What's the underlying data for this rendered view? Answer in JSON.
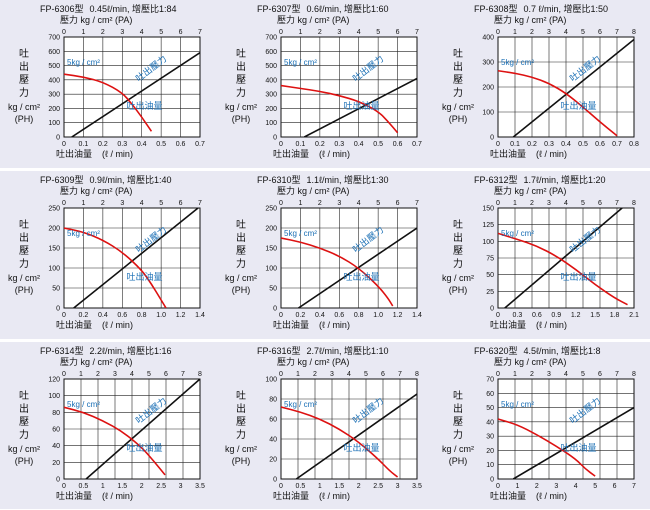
{
  "common": {
    "pressure_label": "壓力",
    "pressure_unit": "kg / cm² (PA)",
    "flow_label": "吐出油量",
    "flow_unit": "(ℓ / min)",
    "y_chars": [
      "吐",
      "出",
      "壓",
      "力"
    ],
    "y_unit": "kg / cm²",
    "y_ph": "(PH)",
    "pressure_curve_label": "吐出壓力",
    "flow_curve_label": "吐出油量",
    "colors": {
      "pressure_line": "#111111",
      "flow_curve": "#dd1111",
      "annotation": "#1a6fb5",
      "band": "#e9e9f3"
    }
  },
  "chart_data": [
    {
      "type": "line",
      "model": "FP-6306型",
      "spec": "0.45ℓ/min, 增壓比1:84",
      "top_ticks": [
        "0",
        "1",
        "2",
        "3",
        "4",
        "5",
        "6",
        "7"
      ],
      "top_max": 7,
      "y_ticks": [
        "0",
        "100",
        "200",
        "300",
        "400",
        "500",
        "600",
        "700"
      ],
      "ylim": [
        0,
        700
      ],
      "x_ticks": [
        "0",
        "0.1",
        "0.2",
        "0.3",
        "0.4",
        "0.5",
        "0.6",
        "0.7"
      ],
      "xlim": [
        0,
        0.7
      ],
      "pressure_line": [
        [
          0.4,
          0
        ],
        [
          7,
          590
        ]
      ],
      "flow_curve": [
        [
          0,
          440
        ],
        [
          0.1,
          420
        ],
        [
          0.2,
          385
        ],
        [
          0.3,
          310
        ],
        [
          0.35,
          230
        ],
        [
          0.4,
          140
        ],
        [
          0.45,
          40
        ]
      ],
      "input_label": "5kg / cm²"
    },
    {
      "type": "line",
      "model": "FP-6307型",
      "spec": "0.6ℓ/min, 增壓比1:60",
      "top_ticks": [
        "0",
        "1",
        "2",
        "3",
        "4",
        "5",
        "6",
        "7"
      ],
      "top_max": 7,
      "y_ticks": [
        "0",
        "100",
        "200",
        "300",
        "400",
        "500",
        "600",
        "700"
      ],
      "ylim": [
        0,
        700
      ],
      "x_ticks": [
        "0",
        "0.1",
        "0.2",
        "0.3",
        "0.4",
        "0.5",
        "0.6",
        "0.7"
      ],
      "xlim": [
        0,
        0.7
      ],
      "pressure_line": [
        [
          1.2,
          0
        ],
        [
          7,
          410
        ]
      ],
      "flow_curve": [
        [
          0,
          360
        ],
        [
          0.1,
          340
        ],
        [
          0.2,
          320
        ],
        [
          0.3,
          290
        ],
        [
          0.4,
          250
        ],
        [
          0.5,
          180
        ],
        [
          0.55,
          110
        ],
        [
          0.6,
          30
        ]
      ],
      "input_label": "5kg / cm²"
    },
    {
      "type": "line",
      "model": "FP-6308型",
      "spec": "0.7 ℓ/min, 增壓比1:50",
      "top_ticks": [
        "0",
        "1",
        "2",
        "3",
        "4",
        "5",
        "6",
        "7",
        "8"
      ],
      "top_max": 8,
      "y_ticks": [
        "0",
        "100",
        "200",
        "300",
        "400"
      ],
      "ylim": [
        0,
        400
      ],
      "x_ticks": [
        "0",
        "0.1",
        "0.2",
        "0.3",
        "0.4",
        "0.5",
        "0.6",
        "0.7",
        "0.8"
      ],
      "xlim": [
        0,
        0.8
      ],
      "pressure_line": [
        [
          0.9,
          0
        ],
        [
          8,
          390
        ]
      ],
      "flow_curve": [
        [
          0,
          265
        ],
        [
          0.1,
          255
        ],
        [
          0.2,
          240
        ],
        [
          0.3,
          215
        ],
        [
          0.4,
          175
        ],
        [
          0.5,
          120
        ],
        [
          0.6,
          60
        ],
        [
          0.7,
          5
        ]
      ],
      "input_label": "5kg / cm²"
    },
    {
      "type": "line",
      "model": "FP-6309型",
      "spec": "0.9ℓ/min, 增壓比1:40",
      "top_ticks": [
        "0",
        "1",
        "2",
        "3",
        "4",
        "5",
        "6",
        "7"
      ],
      "top_max": 7,
      "y_ticks": [
        "0",
        "50",
        "100",
        "150",
        "200",
        "250"
      ],
      "ylim": [
        0,
        250
      ],
      "x_ticks": [
        "0",
        "0.2",
        "0.4",
        "0.6",
        "0.8",
        "1.0",
        "1.2",
        "1.4"
      ],
      "xlim": [
        0,
        1.4
      ],
      "pressure_line": [
        [
          0.5,
          0
        ],
        [
          6.9,
          250
        ]
      ],
      "flow_curve": [
        [
          0,
          200
        ],
        [
          0.2,
          190
        ],
        [
          0.4,
          170
        ],
        [
          0.6,
          140
        ],
        [
          0.8,
          95
        ],
        [
          0.9,
          60
        ],
        [
          1.0,
          20
        ],
        [
          1.05,
          0
        ]
      ],
      "input_label": "5kg / cm²"
    },
    {
      "type": "line",
      "model": "FP-6310型",
      "spec": "1.1ℓ/min, 增壓比1:30",
      "top_ticks": [
        "0",
        "1",
        "2",
        "3",
        "4",
        "5",
        "6",
        "7"
      ],
      "top_max": 7,
      "y_ticks": [
        "0",
        "50",
        "100",
        "150",
        "200",
        "250"
      ],
      "ylim": [
        0,
        250
      ],
      "x_ticks": [
        "0",
        "0.2",
        "0.4",
        "0.6",
        "0.8",
        "1.0",
        "1.2",
        "1.4"
      ],
      "xlim": [
        0,
        1.4
      ],
      "pressure_line": [
        [
          0.9,
          0
        ],
        [
          7,
          200
        ]
      ],
      "flow_curve": [
        [
          0,
          175
        ],
        [
          0.2,
          165
        ],
        [
          0.4,
          150
        ],
        [
          0.6,
          130
        ],
        [
          0.8,
          100
        ],
        [
          1.0,
          55
        ],
        [
          1.1,
          25
        ],
        [
          1.15,
          5
        ]
      ],
      "input_label": "5kg / cm²"
    },
    {
      "type": "line",
      "model": "FP-6312型",
      "spec": "1.7ℓ/min, 增壓比1:20",
      "top_ticks": [
        "0",
        "1",
        "2",
        "3",
        "4",
        "5",
        "6",
        "7",
        "8"
      ],
      "top_max": 8,
      "y_ticks": [
        "0",
        "25",
        "50",
        "75",
        "100",
        "125",
        "150"
      ],
      "ylim": [
        0,
        150
      ],
      "x_ticks": [
        "0",
        "0.3",
        "0.6",
        "0.9",
        "1.2",
        "1.5",
        "1.8",
        "2.1"
      ],
      "xlim": [
        0,
        2.1
      ],
      "pressure_line": [
        [
          0.4,
          0
        ],
        [
          7.3,
          150
        ]
      ],
      "flow_curve": [
        [
          0,
          112
        ],
        [
          0.3,
          103
        ],
        [
          0.6,
          93
        ],
        [
          0.9,
          78
        ],
        [
          1.2,
          58
        ],
        [
          1.5,
          35
        ],
        [
          1.8,
          15
        ],
        [
          2.0,
          5
        ]
      ],
      "input_label": "5kg / cm²"
    },
    {
      "type": "line",
      "model": "FP-6314型",
      "spec": "2.2ℓ/min, 增壓比1:16",
      "top_ticks": [
        "0",
        "1",
        "2",
        "3",
        "4",
        "5",
        "6",
        "7",
        "8"
      ],
      "top_max": 8,
      "y_ticks": [
        "0",
        "20",
        "40",
        "60",
        "80",
        "100",
        "120"
      ],
      "ylim": [
        0,
        120
      ],
      "x_ticks": [
        "0",
        "0.5",
        "1",
        "1.5",
        "2",
        "2.5",
        "3",
        "3.5"
      ],
      "xlim": [
        0,
        3.5
      ],
      "pressure_line": [
        [
          1.3,
          0
        ],
        [
          8,
          120
        ]
      ],
      "flow_curve": [
        [
          0,
          86
        ],
        [
          0.5,
          80
        ],
        [
          1.0,
          70
        ],
        [
          1.5,
          57
        ],
        [
          2.0,
          38
        ],
        [
          2.3,
          22
        ],
        [
          2.6,
          5
        ]
      ],
      "input_label": "5kg / cm²"
    },
    {
      "type": "line",
      "model": "FP-6316型",
      "spec": "2.7ℓ/min, 增壓比1:10",
      "top_ticks": [
        "0",
        "1",
        "2",
        "3",
        "4",
        "5",
        "6",
        "7",
        "8"
      ],
      "top_max": 8,
      "y_ticks": [
        "0",
        "20",
        "40",
        "60",
        "80",
        "100"
      ],
      "ylim": [
        0,
        100
      ],
      "x_ticks": [
        "0",
        "0.5",
        "1",
        "1.5",
        "2",
        "2.5",
        "3",
        "3.5"
      ],
      "xlim": [
        0,
        3.5
      ],
      "pressure_line": [
        [
          0.9,
          0
        ],
        [
          8,
          85
        ]
      ],
      "flow_curve": [
        [
          0,
          72
        ],
        [
          0.5,
          67
        ],
        [
          1.0,
          60
        ],
        [
          1.5,
          50
        ],
        [
          2.0,
          37
        ],
        [
          2.5,
          20
        ],
        [
          2.8,
          8
        ],
        [
          3.0,
          2
        ]
      ],
      "input_label": "5kg / cm²"
    },
    {
      "type": "line",
      "model": "FP-6320型",
      "spec": "4.5ℓ/min, 增壓比1:8",
      "top_ticks": [
        "0",
        "1",
        "2",
        "3",
        "4",
        "5",
        "6",
        "7",
        "8"
      ],
      "top_max": 8,
      "y_ticks": [
        "0",
        "10",
        "20",
        "30",
        "40",
        "50",
        "60",
        "70"
      ],
      "ylim": [
        0,
        70
      ],
      "x_ticks": [
        "0",
        "1",
        "2",
        "3",
        "4",
        "5",
        "6",
        "7"
      ],
      "xlim": [
        0,
        7
      ],
      "pressure_line": [
        [
          0.9,
          0
        ],
        [
          8,
          50
        ]
      ],
      "flow_curve": [
        [
          0,
          42
        ],
        [
          1,
          38
        ],
        [
          2,
          31
        ],
        [
          3,
          23
        ],
        [
          4,
          14
        ],
        [
          4.5,
          7
        ],
        [
          5,
          2
        ]
      ],
      "input_label": "5kg / cm²"
    }
  ]
}
